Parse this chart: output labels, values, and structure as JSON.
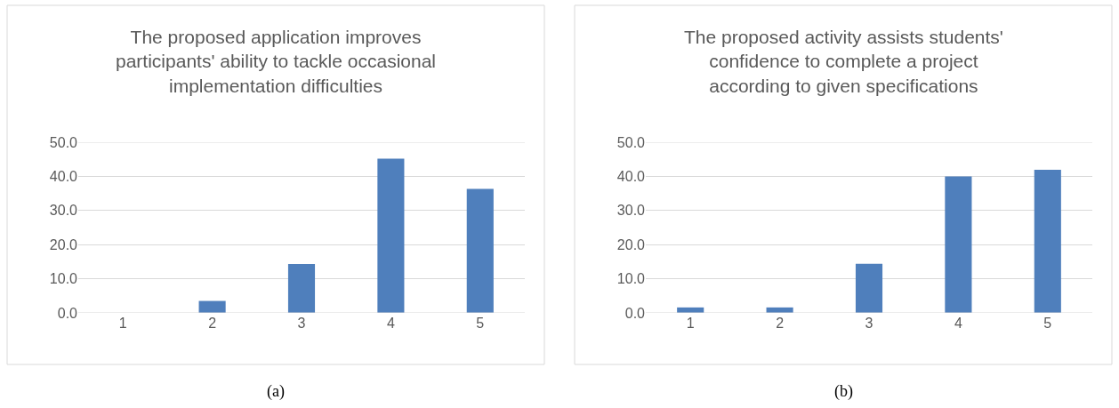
{
  "chart_data": [
    {
      "type": "bar",
      "title": "The proposed application improves\nparticipants' ability to tackle occasional\nimplementation difficulties",
      "categories": [
        "1",
        "2",
        "3",
        "4",
        "5"
      ],
      "values": [
        0,
        3.5,
        14.3,
        45.2,
        36.3
      ],
      "color": "#4f7fbc",
      "ylim": [
        0,
        50
      ],
      "yticks": [
        {
          "value": 0,
          "label": "0.0"
        },
        {
          "value": 10,
          "label": "10.0"
        },
        {
          "value": 20,
          "label": "20.0"
        },
        {
          "value": 30,
          "label": "30.0"
        },
        {
          "value": 40,
          "label": "40.0"
        },
        {
          "value": 50,
          "label": "50.0"
        }
      ],
      "grid": "y",
      "annotations": [
        "(a)"
      ]
    },
    {
      "type": "bar",
      "title": "The proposed activity assists students'\nconfidence to complete a project\naccording to given specifications",
      "categories": [
        "1",
        "2",
        "3",
        "4",
        "5"
      ],
      "values": [
        1.6,
        1.6,
        14.4,
        40.0,
        41.9
      ],
      "color": "#4f7fbc",
      "ylim": [
        0,
        50
      ],
      "yticks": [
        {
          "value": 0,
          "label": "0.0"
        },
        {
          "value": 10,
          "label": "10.0"
        },
        {
          "value": 20,
          "label": "20.0"
        },
        {
          "value": 30,
          "label": "30.0"
        },
        {
          "value": 40,
          "label": "40.0"
        },
        {
          "value": 50,
          "label": "50.0"
        }
      ],
      "grid": "y",
      "annotations": [
        "(b)"
      ]
    }
  ]
}
